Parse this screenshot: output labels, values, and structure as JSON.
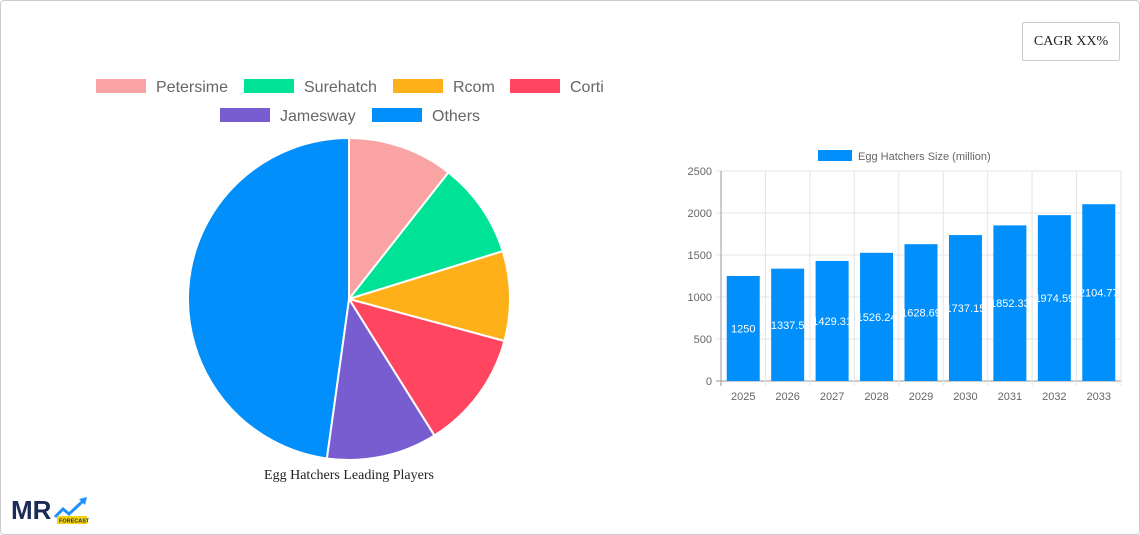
{
  "cagr_label": "CAGR XX%",
  "logo_text": "MR FORECAST",
  "chart_data": [
    {
      "type": "pie",
      "title": "Egg Hatchers Leading Players",
      "legend_position": "top",
      "categories": [
        "Petersime",
        "Surehatch",
        "Rcom",
        "Corti",
        "Jamesway",
        "Others"
      ],
      "values": [
        10.6,
        9.6,
        9.0,
        11.9,
        11.1,
        47.8
      ],
      "colors": [
        "#f9a3a4",
        "#00e396",
        "#feb019",
        "#ff4560",
        "#775dd0",
        "#008ffb"
      ]
    },
    {
      "type": "bar",
      "legend_position": "top",
      "categories": [
        "2025",
        "2026",
        "2027",
        "2028",
        "2029",
        "2030",
        "2031",
        "2032",
        "2033"
      ],
      "series": [
        {
          "name": "Egg Hatchers Size (million)",
          "values": [
            1250,
            1337.5,
            1429.31,
            1526.24,
            1628.69,
            1737.15,
            1852.33,
            1974.59,
            2104.77
          ],
          "color": "#008ffb"
        }
      ],
      "ylim": [
        0,
        2500
      ],
      "yticks": [
        0,
        500,
        1000,
        1500,
        2000,
        2500
      ],
      "grid": true
    }
  ]
}
